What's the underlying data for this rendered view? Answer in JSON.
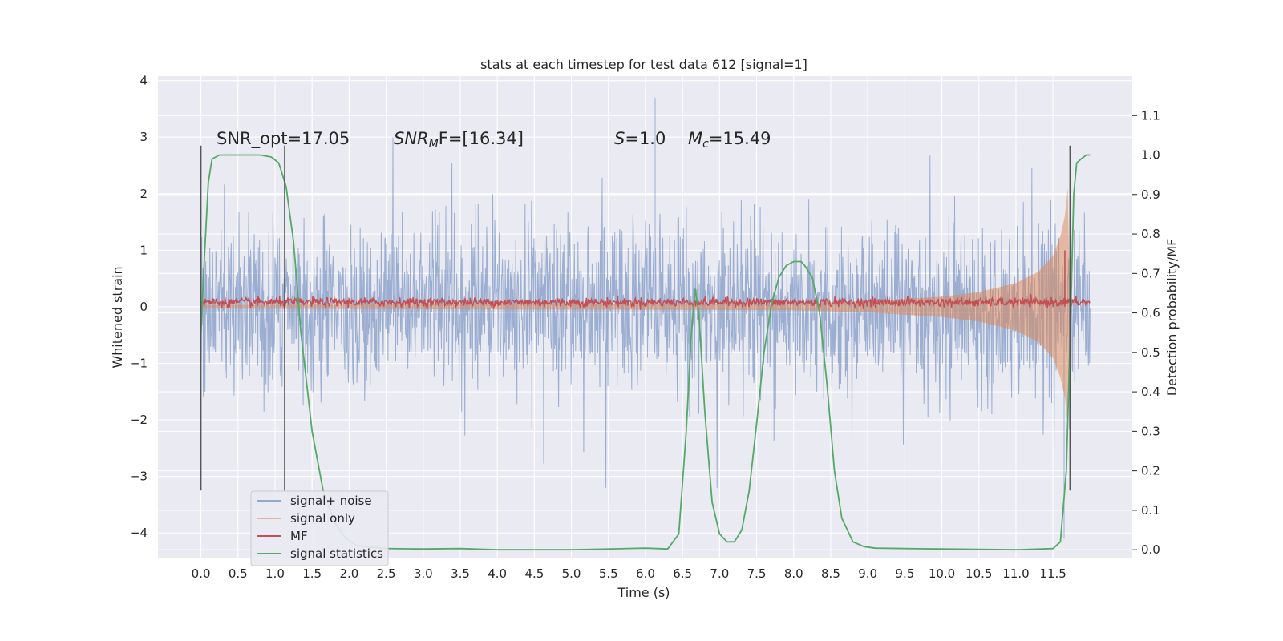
{
  "chart_data": {
    "type": "line",
    "title": "stats at each timestep for test data 612 [signal=1]",
    "xlabel": "Time (s)",
    "ylabel": "Whitened strain",
    "y2label": "Detection probability/MF",
    "xlim": [
      -0.58,
      12.57
    ],
    "ylim": [
      -4.45,
      4.08
    ],
    "y2lim": [
      -0.022,
      1.2
    ],
    "xticks": [
      "0.0",
      "0.5",
      "1.0",
      "1.5",
      "2.0",
      "2.5",
      "3.0",
      "3.5",
      "4.0",
      "4.5",
      "5.0",
      "5.5",
      "6.0",
      "6.5",
      "7.0",
      "7.5",
      "8.0",
      "8.5",
      "9.0",
      "9.5",
      "10.0",
      "10.5",
      "11.0",
      "11.5"
    ],
    "yticks": [
      "4",
      "3",
      "2",
      "1",
      "0",
      "−1",
      "−2",
      "−3",
      "−4"
    ],
    "y2ticks": [
      "1.1",
      "1.0",
      "0.9",
      "0.8",
      "0.7",
      "0.6",
      "0.5",
      "0.4",
      "0.3",
      "0.2",
      "0.1",
      "0.0"
    ],
    "grid": true,
    "legend_position": "lower-left",
    "annotations": {
      "snr_opt": "SNR_opt=17.05",
      "snr_mf_sym": "SNR",
      "snr_mf_sub": "M",
      "snr_mf_rest": "F=[16.34]",
      "s_sym": "S",
      "s_rest": "=1.0",
      "mc_sym": "M",
      "mc_sub": "c",
      "mc_rest": "=15.49"
    },
    "vlines": [
      0.0,
      1.13,
      11.73
    ],
    "vline_range": [
      -3.25,
      2.85
    ],
    "series": [
      {
        "name": "signal+ noise",
        "color": "#4c72b0",
        "axis": "left",
        "description_values": {
          "t_start": 0.0,
          "t_end": 12.0,
          "typical_amplitude": 1.6,
          "peak_max": 3.7,
          "peak_min": -4.1
        }
      },
      {
        "name": "signal only",
        "color": "#dd8452",
        "axis": "left",
        "x": [
          0.0,
          8.0,
          9.0,
          10.0,
          10.5,
          11.0,
          11.3,
          11.5,
          11.6,
          11.66,
          11.7,
          11.73
        ],
        "envelope": [
          0.03,
          0.06,
          0.1,
          0.18,
          0.26,
          0.42,
          0.62,
          0.9,
          1.25,
          1.6,
          2.1,
          0.0
        ]
      },
      {
        "name": "MF",
        "color": "#c44e52",
        "axis": "left",
        "x": [
          0.0,
          12.0
        ],
        "baseline": 0.08,
        "spike_t": 11.66,
        "spike_range": [
          -0.0,
          1.0
        ]
      },
      {
        "name": "signal statistics",
        "color": "#55a868",
        "axis": "right",
        "x": [
          0.0,
          0.05,
          0.1,
          0.15,
          0.25,
          0.4,
          0.6,
          0.8,
          0.95,
          1.05,
          1.15,
          1.25,
          1.35,
          1.5,
          1.65,
          1.8,
          1.95,
          2.1,
          2.5,
          3.0,
          3.5,
          4.0,
          5.0,
          6.0,
          6.3,
          6.45,
          6.55,
          6.62,
          6.67,
          6.72,
          6.8,
          6.9,
          7.0,
          7.1,
          7.2,
          7.3,
          7.4,
          7.5,
          7.6,
          7.7,
          7.8,
          7.9,
          8.0,
          8.1,
          8.15,
          8.25,
          8.35,
          8.45,
          8.55,
          8.65,
          8.8,
          8.95,
          9.1,
          9.5,
          10.0,
          11.0,
          11.5,
          11.6,
          11.68,
          11.74,
          11.78,
          11.82,
          11.88,
          11.95,
          12.0
        ],
        "values": [
          0.55,
          0.75,
          0.93,
          0.99,
          1.0,
          1.0,
          1.0,
          1.0,
          0.995,
          0.98,
          0.92,
          0.78,
          0.55,
          0.3,
          0.15,
          0.07,
          0.03,
          0.01,
          0.003,
          0.002,
          0.003,
          0.0,
          0.0,
          0.004,
          0.002,
          0.04,
          0.3,
          0.55,
          0.66,
          0.6,
          0.35,
          0.12,
          0.04,
          0.02,
          0.02,
          0.05,
          0.15,
          0.32,
          0.5,
          0.62,
          0.69,
          0.72,
          0.73,
          0.73,
          0.72,
          0.69,
          0.6,
          0.42,
          0.2,
          0.08,
          0.02,
          0.008,
          0.004,
          0.003,
          0.002,
          0.0,
          0.003,
          0.02,
          0.2,
          0.6,
          0.9,
          0.98,
          0.99,
          1.0,
          1.0
        ]
      }
    ]
  }
}
